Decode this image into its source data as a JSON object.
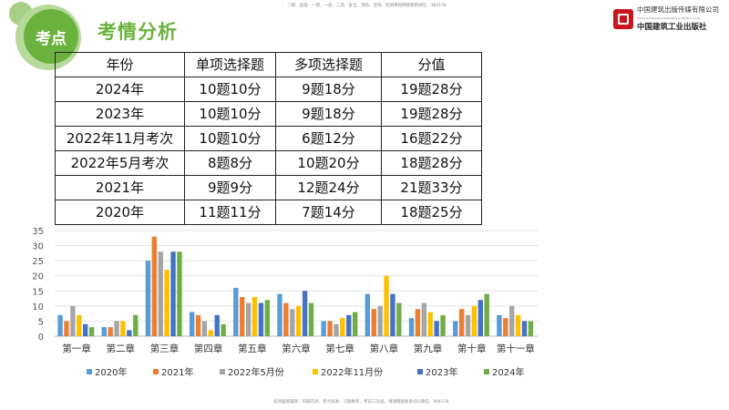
{
  "header": {
    "badge": "考点",
    "title": "考情分析",
    "top_note": "二建、监理、一建、一造、二造、安全、消防、咨询、检测课程网盘联系微信：384178"
  },
  "logo": {
    "line1": "中国建筑出版传媒有限公司",
    "line2": "China Architecture Publishing & Media Co.,Ltd.",
    "line3": "中国建筑工业出版社"
  },
  "footer": {
    "note": "名师面授辅导、内部内训、考点串讲、习题精考、考前三页纸，请透网盘联系QQ/微信：384178"
  },
  "table": {
    "headers": [
      "年份",
      "单项选择题",
      "多项选择题",
      "分值"
    ],
    "rows": [
      [
        "2024年",
        "10题10分",
        "9题18分",
        "19题28分"
      ],
      [
        "2023年",
        "10题10分",
        "9题18分",
        "19题28分"
      ],
      [
        "2022年11月考次",
        "10题10分",
        "6题12分",
        "16题22分"
      ],
      [
        "2022年5月考次",
        "8题8分",
        "10题20分",
        "18题28分"
      ],
      [
        "2021年",
        "9题9分",
        "12题24分",
        "21题33分"
      ],
      [
        "2020年",
        "11题11分",
        "7题14分",
        "18题25分"
      ]
    ]
  },
  "chart_data": {
    "type": "bar",
    "categories": [
      "第一章",
      "第二章",
      "第三章",
      "第四章",
      "第五章",
      "第六章",
      "第七章",
      "第八章",
      "第九章",
      "第十章",
      "第十一章"
    ],
    "ylim": [
      0,
      35
    ],
    "yticks": [
      "0",
      "5",
      "10",
      "15",
      "20",
      "25",
      "30",
      "35"
    ],
    "grid": true,
    "legend": "bottom",
    "series": [
      {
        "name": "2020年",
        "color": "#5b9bd5",
        "values": [
          7,
          3,
          25,
          8,
          16,
          14,
          5,
          14,
          6,
          5,
          7
        ]
      },
      {
        "name": "2021年",
        "color": "#ed7d31",
        "values": [
          5,
          3,
          33,
          7,
          13,
          11,
          5,
          9,
          9,
          9,
          6
        ]
      },
      {
        "name": "2022年5月份",
        "color": "#a5a5a5",
        "values": [
          10,
          5,
          28,
          5,
          11,
          9,
          4,
          10,
          11,
          7,
          10
        ]
      },
      {
        "name": "2022年11月份",
        "color": "#ffc000",
        "values": [
          7,
          5,
          22,
          2,
          13,
          10,
          6,
          20,
          8,
          10,
          7
        ]
      },
      {
        "name": "2023年",
        "color": "#4472c4",
        "values": [
          4,
          2,
          28,
          7,
          11,
          15,
          7,
          14,
          5,
          12,
          5
        ]
      },
      {
        "name": "2024年",
        "color": "#70ad47",
        "values": [
          3,
          7,
          28,
          4,
          12,
          11,
          8,
          11,
          7,
          14,
          5
        ]
      }
    ]
  }
}
